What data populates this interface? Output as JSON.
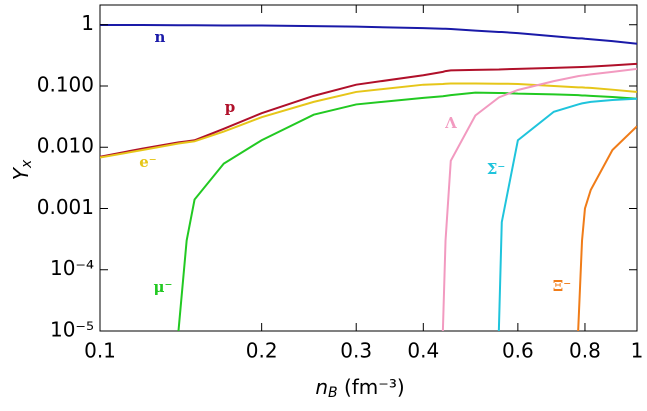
{
  "chart_data": {
    "type": "line",
    "xlabel": [
      "n",
      "B",
      " (fm⁻³)"
    ],
    "ylabel": [
      "Y",
      "x"
    ],
    "xlog": true,
    "ylog": true,
    "grid": false,
    "xlim": [
      0.1,
      1
    ],
    "ylim": [
      1e-05,
      2.1
    ],
    "xticks": [
      0.1,
      0.2,
      0.3,
      0.4,
      0.6,
      0.8,
      1
    ],
    "yticks": [
      {
        "value": 1e-05,
        "label": "10⁻⁵"
      },
      {
        "value": 0.0001,
        "label": "10⁻⁴"
      },
      0.001,
      {
        "value": 0.01,
        "label": "0.010"
      },
      {
        "value": 0.1,
        "label": "0.100"
      },
      1
    ],
    "x": [
      0.1,
      0.12,
      0.14,
      0.145,
      0.15,
      0.17,
      0.2,
      0.25,
      0.3,
      0.4,
      0.435,
      0.44,
      0.45,
      0.5,
      0.553,
      0.56,
      0.6,
      0.7,
      0.777,
      0.79,
      0.8,
      0.82,
      0.9,
      1
    ],
    "series": [
      {
        "name": "n",
        "color": "#1a1aa8",
        "values": [
          0.99,
          0.99,
          0.98,
          0.98,
          0.98,
          0.97,
          0.97,
          0.95,
          0.93,
          0.88,
          0.86,
          0.86,
          0.85,
          0.8,
          0.76,
          0.76,
          0.73,
          0.65,
          0.6,
          0.6,
          0.59,
          0.58,
          0.54,
          0.49
        ]
      },
      {
        "name": "p",
        "color": "#b0102a",
        "values": [
          0.007,
          0.0095,
          0.012,
          0.0125,
          0.013,
          0.02,
          0.036,
          0.069,
          0.105,
          0.15,
          0.17,
          0.175,
          0.18,
          0.183,
          0.186,
          0.187,
          0.19,
          0.198,
          0.203,
          0.204,
          0.205,
          0.207,
          0.217,
          0.23
        ]
      },
      {
        "name": "e⁻",
        "color": "#e6c619",
        "values": [
          0.0068,
          0.009,
          0.0115,
          0.012,
          0.0125,
          0.018,
          0.031,
          0.055,
          0.08,
          0.105,
          0.108,
          0.109,
          0.11,
          0.11,
          0.109,
          0.109,
          0.108,
          0.1,
          0.095,
          0.095,
          0.094,
          0.093,
          0.087,
          0.08
        ]
      },
      {
        "name": "μ⁻",
        "color": "#22c922",
        "values": [
          null,
          null,
          1e-05,
          0.0003,
          0.0014,
          0.0054,
          0.013,
          0.034,
          0.05,
          0.064,
          0.068,
          0.069,
          0.071,
          0.078,
          0.077,
          0.077,
          0.075,
          0.073,
          0.071,
          0.07,
          0.07,
          0.069,
          0.066,
          0.062
        ]
      },
      {
        "name": "Λ",
        "color": "#f29ac0",
        "values": [
          null,
          null,
          null,
          null,
          null,
          null,
          null,
          null,
          null,
          null,
          1e-05,
          0.0003,
          0.006,
          0.033,
          0.065,
          0.068,
          0.086,
          0.12,
          0.145,
          0.148,
          0.15,
          0.155,
          0.17,
          0.19
        ]
      },
      {
        "name": "Σ⁻",
        "color": "#1fc4dc",
        "values": [
          null,
          null,
          null,
          null,
          null,
          null,
          null,
          null,
          null,
          null,
          null,
          null,
          null,
          null,
          1e-05,
          0.0006,
          0.013,
          0.038,
          0.05,
          0.052,
          0.053,
          0.055,
          0.059,
          0.062
        ]
      },
      {
        "name": "Ξ⁻",
        "color": "#f07c18",
        "values": [
          null,
          null,
          null,
          null,
          null,
          null,
          null,
          null,
          null,
          null,
          null,
          null,
          null,
          null,
          null,
          null,
          null,
          null,
          1e-05,
          0.0003,
          0.001,
          0.002,
          0.009,
          0.022
        ]
      }
    ]
  }
}
